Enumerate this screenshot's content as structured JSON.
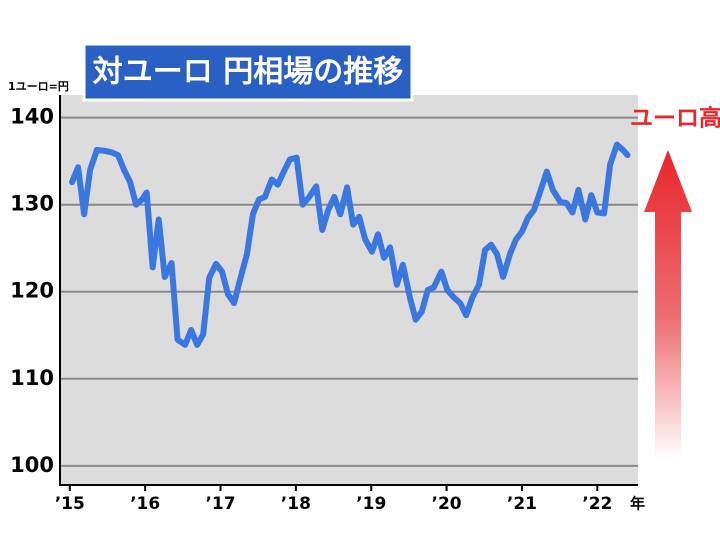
{
  "chart_data": {
    "type": "line",
    "title": "対ユーロ 円相場の推移",
    "ylabel": "1ユーロ=円",
    "xlabel": "年",
    "annotation": "ユーロ高",
    "x": [
      2015.03,
      2015.11,
      2015.19,
      2015.27,
      2015.36,
      2015.45,
      2015.56,
      2015.64,
      2015.72,
      2015.8,
      2015.88,
      2015.96,
      2016.02,
      2016.1,
      2016.18,
      2016.26,
      2016.35,
      2016.43,
      2016.53,
      2016.61,
      2016.69,
      2016.77,
      2016.85,
      2016.94,
      2017.02,
      2017.1,
      2017.18,
      2017.26,
      2017.35,
      2017.43,
      2017.51,
      2017.59,
      2017.68,
      2017.76,
      2017.84,
      2017.92,
      2018.01,
      2018.09,
      2018.17,
      2018.27,
      2018.35,
      2018.43,
      2018.51,
      2018.59,
      2018.68,
      2018.76,
      2018.84,
      2018.92,
      2019.01,
      2019.09,
      2019.17,
      2019.25,
      2019.34,
      2019.42,
      2019.52,
      2019.59,
      2019.67,
      2019.75,
      2019.83,
      2019.93,
      2020.01,
      2020.09,
      2020.18,
      2020.26,
      2020.34,
      2020.43,
      2020.51,
      2020.59,
      2020.67,
      2020.75,
      2020.84,
      2020.92,
      2021.0,
      2021.08,
      2021.16,
      2021.25,
      2021.33,
      2021.41,
      2021.51,
      2021.59,
      2021.67,
      2021.75,
      2021.84,
      2021.92,
      2022.0,
      2022.09,
      2022.17,
      2022.26,
      2022.34,
      2022.4
    ],
    "series": [
      {
        "name": "円相場",
        "color": "#3a78e0",
        "values": [
          132.6,
          134.3,
          128.9,
          134.0,
          136.3,
          136.2,
          136.0,
          135.7,
          134.0,
          132.6,
          130.0,
          130.6,
          131.4,
          122.8,
          128.3,
          121.7,
          123.3,
          114.5,
          113.9,
          115.6,
          113.9,
          115.1,
          121.6,
          123.2,
          122.3,
          119.7,
          118.7,
          121.4,
          124.3,
          128.9,
          130.6,
          130.9,
          132.9,
          132.3,
          133.8,
          135.2,
          135.4,
          130.0,
          130.8,
          132.1,
          127.1,
          129.4,
          130.9,
          128.9,
          132.0,
          127.7,
          128.6,
          126.0,
          124.6,
          126.6,
          123.9,
          125.1,
          120.8,
          123.1,
          119.1,
          116.8,
          117.7,
          120.2,
          120.5,
          122.3,
          120.2,
          119.4,
          118.7,
          117.3,
          119.3,
          120.8,
          124.8,
          125.4,
          124.3,
          121.7,
          124.3,
          126.0,
          126.9,
          128.5,
          129.4,
          131.7,
          133.8,
          131.7,
          130.3,
          130.2,
          129.1,
          131.7,
          128.3,
          131.1,
          129.1,
          129.0,
          134.6,
          136.9,
          136.3,
          135.7
        ]
      }
    ],
    "xlim": [
      2014.87,
      2022.54
    ],
    "xticks": [
      {
        "value": 2015,
        "label": "’15"
      },
      {
        "value": 2016,
        "label": "’16"
      },
      {
        "value": 2017,
        "label": "’17"
      },
      {
        "value": 2018,
        "label": "’18"
      },
      {
        "value": 2019,
        "label": "’19"
      },
      {
        "value": 2020,
        "label": "’20"
      },
      {
        "value": 2021,
        "label": "’21"
      },
      {
        "value": 2022,
        "label": "’22"
      }
    ],
    "ylim": [
      97.8,
      142.6
    ],
    "yticks": [
      100,
      110,
      120,
      130,
      140
    ],
    "grid": true
  }
}
